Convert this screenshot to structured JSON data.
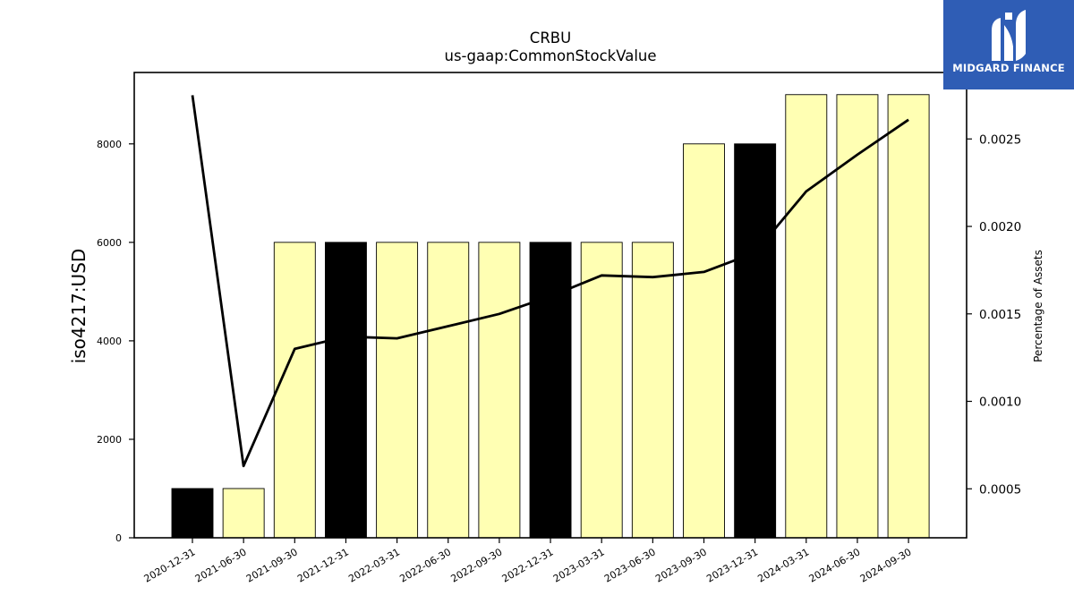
{
  "chart_data": {
    "type": "bar",
    "title": "CRBU",
    "subtitle": "us-gaap:CommonStockValue",
    "ylabel": "iso4217:USD",
    "y2label": "Percentage of Assets",
    "categories": [
      "2020-12-31",
      "2021-06-30",
      "2021-09-30",
      "2021-12-31",
      "2022-03-31",
      "2022-06-30",
      "2022-09-30",
      "2022-12-31",
      "2023-03-31",
      "2023-06-30",
      "2023-09-30",
      "2023-12-31",
      "2024-03-31",
      "2024-06-30",
      "2024-09-30"
    ],
    "series": [
      {
        "type": "bar",
        "axis": "left",
        "values": [
          1000,
          1000,
          6000,
          6000,
          6000,
          6000,
          6000,
          6000,
          6000,
          6000,
          8000,
          8000,
          9000,
          9000,
          9000
        ]
      },
      {
        "type": "line",
        "axis": "right",
        "values": [
          0.00275,
          0.00063,
          0.0013,
          0.00137,
          0.00136,
          0.00143,
          0.0015,
          0.0016,
          0.00172,
          0.00171,
          0.00174,
          0.00185,
          0.0022,
          0.00241,
          0.00261
        ]
      }
    ],
    "bar_colors": [
      "#000000",
      "#ffffb3",
      "#ffffb3",
      "#000000",
      "#ffffb3",
      "#ffffb3",
      "#ffffb3",
      "#000000",
      "#ffffb3",
      "#ffffb3",
      "#ffffb3",
      "#000000",
      "#ffffb3",
      "#ffffb3",
      "#ffffb3"
    ],
    "line_color": "#000000",
    "ylim": [
      0,
      9450
    ],
    "y2lim": [
      0.00022,
      0.00288
    ],
    "yticks": [
      0,
      2000,
      4000,
      6000,
      8000
    ],
    "y2ticks": [
      "0.0005",
      "0.0010",
      "0.0015",
      "0.0020",
      "0.0025"
    ],
    "grid": false,
    "legend": "none"
  },
  "logo": {
    "text": "MIDGARD FINANCE",
    "background": "#2f5db5"
  }
}
